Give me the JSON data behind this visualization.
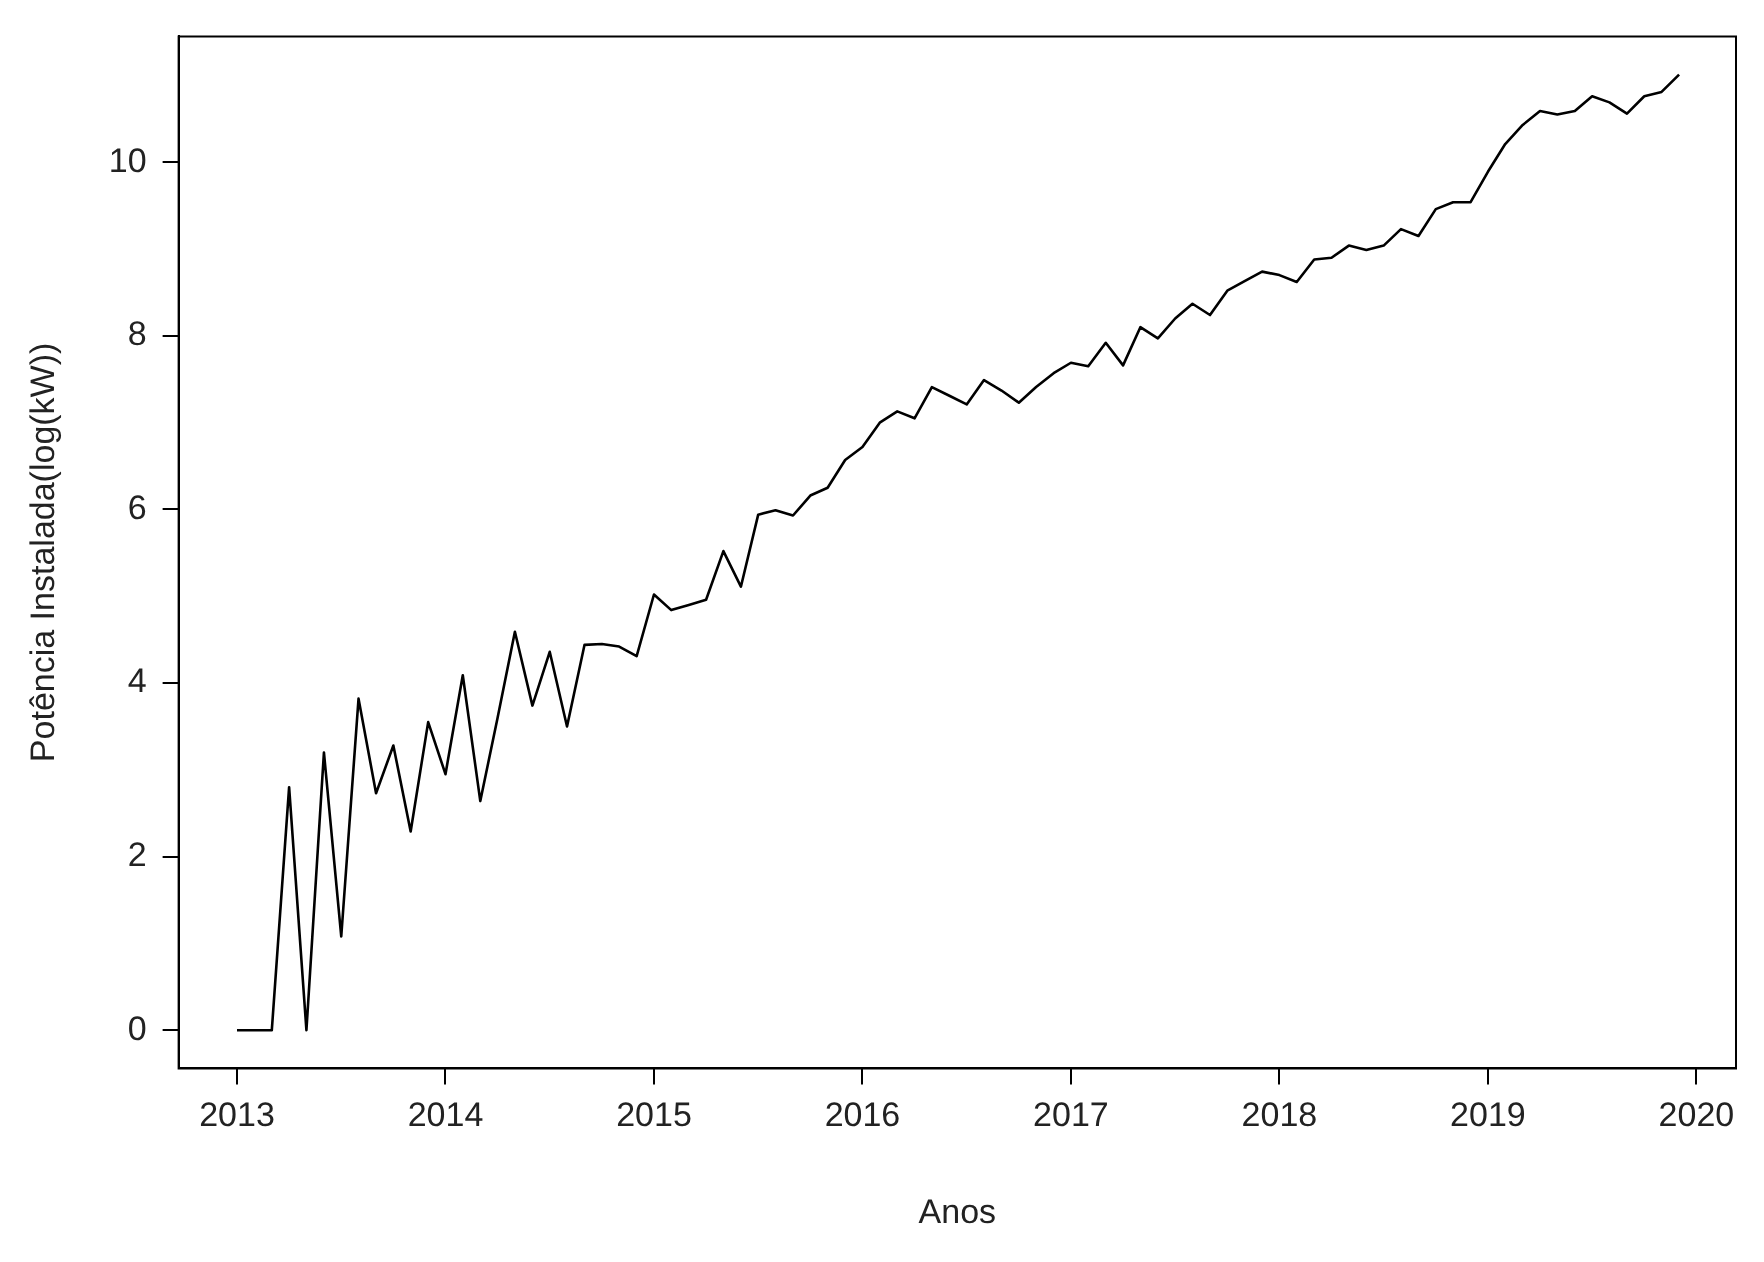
{
  "chart_data": {
    "type": "line",
    "xlabel": "Anos",
    "ylabel": "Potência Instalada(log(kW))",
    "x": [
      2013,
      2013.083,
      2013.167,
      2013.25,
      2013.333,
      2013.417,
      2013.5,
      2013.583,
      2013.667,
      2013.75,
      2013.833,
      2013.917,
      2014,
      2014.083,
      2014.167,
      2014.25,
      2014.333,
      2014.417,
      2014.5,
      2014.583,
      2014.667,
      2014.75,
      2014.833,
      2014.917,
      2015,
      2015.083,
      2015.167,
      2015.25,
      2015.333,
      2015.417,
      2015.5,
      2015.583,
      2015.667,
      2015.75,
      2015.833,
      2015.917,
      2016,
      2016.083,
      2016.167,
      2016.25,
      2016.333,
      2016.417,
      2016.5,
      2016.583,
      2016.667,
      2016.75,
      2016.833,
      2016.917,
      2017,
      2017.083,
      2017.167,
      2017.25,
      2017.333,
      2017.417,
      2017.5,
      2017.583,
      2017.667,
      2017.75,
      2017.833,
      2017.917,
      2018,
      2018.083,
      2018.167,
      2018.25,
      2018.333,
      2018.417,
      2018.5,
      2018.583,
      2018.667,
      2018.75,
      2018.833,
      2018.917,
      2019,
      2019.083,
      2019.167,
      2019.25,
      2019.333,
      2019.417,
      2019.5,
      2019.583,
      2019.667,
      2019.75,
      2019.833,
      2019.917
    ],
    "series": [
      {
        "color": "#000000",
        "values": [
          0,
          0,
          0,
          2.8,
          0,
          3.2,
          1.08,
          3.82,
          2.73,
          3.28,
          2.29,
          3.55,
          2.95,
          4.09,
          2.64,
          3.6,
          4.59,
          3.74,
          4.36,
          3.5,
          4.44,
          4.45,
          4.42,
          4.31,
          5.02,
          4.84,
          4.9,
          4.96,
          5.52,
          5.11,
          5.94,
          5.99,
          5.93,
          6.16,
          6.25,
          6.57,
          6.72,
          7.0,
          7.13,
          7.05,
          7.41,
          7.31,
          7.21,
          7.49,
          7.37,
          7.23,
          7.41,
          7.57,
          7.69,
          7.65,
          7.92,
          7.66,
          8.1,
          7.97,
          8.2,
          8.37,
          8.24,
          8.52,
          8.63,
          8.74,
          8.7,
          8.62,
          8.88,
          8.9,
          9.04,
          8.99,
          9.04,
          9.23,
          9.15,
          9.46,
          9.54,
          9.54,
          9.89,
          10.21,
          10.43,
          10.59,
          10.55,
          10.59,
          10.76,
          10.69,
          10.56,
          10.76,
          10.81,
          11.01
        ]
      }
    ],
    "xlim": [
      2012.72,
      2020.19
    ],
    "xticks": [
      2013,
      2014,
      2015,
      2016,
      2017,
      2018,
      2019,
      2020
    ],
    "ylim": [
      -0.44,
      11.45
    ],
    "yticks": [
      0,
      2,
      4,
      6,
      8,
      10
    ],
    "grid": false,
    "legend": false,
    "marker": "none",
    "line_style": "solid"
  }
}
